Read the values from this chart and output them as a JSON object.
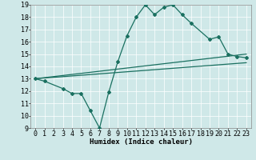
{
  "xlabel": "Humidex (Indice chaleur)",
  "ylabel": "",
  "xlim": [
    -0.5,
    23.5
  ],
  "ylim": [
    9,
    19
  ],
  "xticks": [
    0,
    1,
    2,
    3,
    4,
    5,
    6,
    7,
    8,
    9,
    10,
    11,
    12,
    13,
    14,
    15,
    16,
    17,
    18,
    19,
    20,
    21,
    22,
    23
  ],
  "yticks": [
    9,
    10,
    11,
    12,
    13,
    14,
    15,
    16,
    17,
    18,
    19
  ],
  "bg_color": "#cfe8e8",
  "line_color": "#1a7060",
  "line1_x": [
    0,
    1,
    3,
    4,
    5,
    6,
    7,
    8,
    9,
    10,
    11,
    12,
    13,
    14,
    15,
    16,
    17,
    19,
    20,
    21,
    22,
    23
  ],
  "line1_y": [
    13.0,
    12.8,
    12.2,
    11.8,
    11.8,
    10.4,
    9.0,
    11.9,
    14.4,
    16.5,
    18.0,
    19.0,
    18.2,
    18.8,
    19.0,
    18.2,
    17.5,
    16.2,
    16.4,
    15.0,
    14.8,
    14.7
  ],
  "line2_x": [
    0,
    23
  ],
  "line2_y": [
    13.0,
    15.0
  ],
  "line3_x": [
    0,
    23
  ],
  "line3_y": [
    13.0,
    14.3
  ],
  "font_family": "monospace",
  "axis_fontsize": 6.5,
  "tick_fontsize": 6.0
}
